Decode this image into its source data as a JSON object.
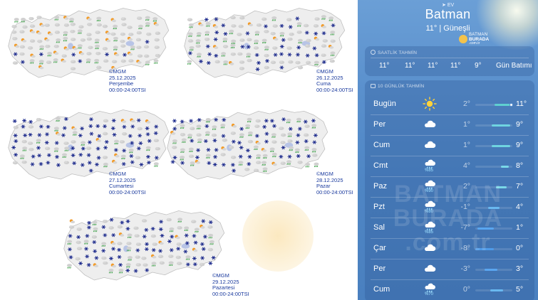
{
  "maps": [
    {
      "date": "25.12.2025",
      "day": "Perşembe",
      "hours": "00:00-24:00TSI",
      "credit": "©MGM"
    },
    {
      "date": "26.12.2025",
      "day": "Cuma",
      "hours": "00:00-24:00TSI",
      "credit": "©MGM"
    },
    {
      "date": "27.12.2025",
      "day": "Cumartesi",
      "hours": "00:00-24:00TSI",
      "credit": "©MGM"
    },
    {
      "date": "28.12.2025",
      "day": "Pazar",
      "hours": "00:00-24:00TSI",
      "credit": "©MGM"
    },
    {
      "date": "29.12.2025",
      "day": "Pazartesi",
      "hours": "00:00-24:00TSI",
      "credit": "©MGM"
    }
  ],
  "weather": {
    "location_hint": "EV",
    "city": "Batman",
    "condition": "11°  |  Güneşli",
    "brand": {
      "line1": "BATMAN",
      "line2": "BURADA",
      "line3": ".com.tr"
    },
    "hourly": {
      "header": "SAATLİK TAHMİN",
      "values": [
        "11°",
        "11°",
        "11°",
        "11°",
        "9°",
        "Gün Batımı"
      ]
    },
    "daily": {
      "header": "10 GÜNLÜK TAHMİN",
      "days": [
        {
          "day": "Bugün",
          "icon": "sun-icon",
          "pct": "",
          "lo": "2°",
          "hi": "11°",
          "range": [
            0.52,
            1.0
          ],
          "now": 0.98,
          "color": "#5fd0d0"
        },
        {
          "day": "Per",
          "icon": "cloud-icon",
          "pct": "",
          "lo": "1°",
          "hi": "9°",
          "range": [
            0.45,
            0.95
          ],
          "color": "#6fd4e0"
        },
        {
          "day": "Cum",
          "icon": "cloud-icon",
          "pct": "",
          "lo": "1°",
          "hi": "9°",
          "range": [
            0.45,
            0.95
          ],
          "color": "#6fd4e0"
        },
        {
          "day": "Cmt",
          "icon": "rain-icon",
          "pct": "%85",
          "lo": "4°",
          "hi": "8°",
          "range": [
            0.7,
            0.9
          ],
          "color": "#7ad8e8"
        },
        {
          "day": "Paz",
          "icon": "rain-icon",
          "pct": "%90",
          "lo": "2°",
          "hi": "7°",
          "range": [
            0.55,
            0.85
          ],
          "color": "#7ad8e8"
        },
        {
          "day": "Pzt",
          "icon": "rain-icon",
          "pct": "%80",
          "lo": "-1°",
          "hi": "4°",
          "range": [
            0.35,
            0.65
          ],
          "color": "#69b8f0"
        },
        {
          "day": "Sal",
          "icon": "rain-icon",
          "pct": "%85",
          "lo": "-7°",
          "hi": "1°",
          "range": [
            0.05,
            0.5
          ],
          "color": "#5aa6f0"
        },
        {
          "day": "Çar",
          "icon": "cloud-icon",
          "pct": "",
          "lo": "-8°",
          "hi": "0°",
          "range": [
            0.0,
            0.5
          ],
          "color": "#4e9ae8"
        },
        {
          "day": "Per",
          "icon": "cloud-icon",
          "pct": "",
          "lo": "-3°",
          "hi": "3°",
          "range": [
            0.25,
            0.6
          ],
          "color": "#5aa6f0"
        },
        {
          "day": "Cum",
          "icon": "rain-icon",
          "pct": "%70",
          "lo": "0°",
          "hi": "5°",
          "range": [
            0.4,
            0.75
          ],
          "color": "#69b8f0"
        }
      ]
    }
  },
  "watermark": "BATMAN BURADA .com.tr"
}
